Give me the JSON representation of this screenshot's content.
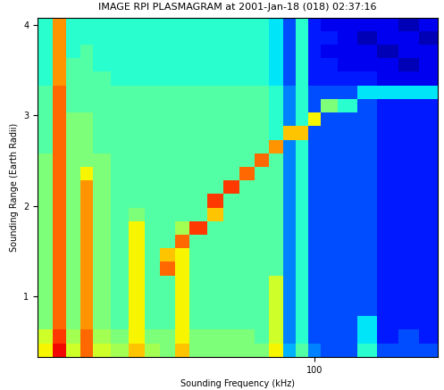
{
  "chart_data": {
    "type": "heatmap",
    "title": "IMAGE RPI PLASMAGRAM at 2001-Jan-18 (018) 02:37:16",
    "x_label": "Sounding Frequency (kHz)",
    "y_label": "Sounding Range (Earth Radii)",
    "log": "x",
    "xlim": [
      40,
      150
    ],
    "xticks": [
      100
    ],
    "ylim": [
      0.33,
      4.08
    ],
    "yticks": [
      1,
      2,
      3,
      4
    ],
    "clim": [
      0,
      10
    ],
    "x_edges": [
      40,
      42,
      44,
      46,
      48,
      51,
      54,
      57,
      60,
      63,
      66,
      70,
      74,
      78,
      82,
      86,
      90,
      94,
      98,
      102,
      108,
      115,
      123,
      132,
      141,
      150
    ],
    "y_edges": [
      0.33,
      0.48,
      0.63,
      0.78,
      0.93,
      1.08,
      1.23,
      1.38,
      1.53,
      1.68,
      1.83,
      1.98,
      2.13,
      2.28,
      2.43,
      2.58,
      2.73,
      2.88,
      3.03,
      3.18,
      3.33,
      3.48,
      3.63,
      3.78,
      3.93,
      4.08
    ],
    "cells": [
      [
        6.5,
        9,
        6,
        8,
        6,
        5.5,
        7,
        5.5,
        5,
        7,
        5,
        5,
        5,
        5,
        5,
        6.5,
        3,
        4.5,
        2.5,
        2,
        2,
        4,
        2,
        2,
        2
      ],
      [
        6,
        8.5,
        5.5,
        8,
        5.5,
        5,
        6.5,
        5,
        5,
        6.5,
        5,
        5,
        5,
        5,
        4.5,
        6,
        2.5,
        4,
        2,
        2,
        2,
        3.5,
        1.5,
        2,
        1.5
      ],
      [
        5,
        8,
        5,
        7.5,
        5,
        4.5,
        6.5,
        4.5,
        4.5,
        6.5,
        4.5,
        4.5,
        4.5,
        4.5,
        4.5,
        6,
        2.5,
        4,
        2,
        2,
        2,
        3.5,
        1.5,
        1.5,
        1.5
      ],
      [
        5,
        8,
        5,
        7.5,
        5,
        4.5,
        6.5,
        4.5,
        4.5,
        6.5,
        4.5,
        4.5,
        4.5,
        4.5,
        4.5,
        6,
        2.5,
        4,
        2,
        2,
        2,
        2,
        1.5,
        1.5,
        1.5
      ],
      [
        5,
        8,
        5,
        7.5,
        5,
        4.5,
        6.5,
        4.5,
        4.5,
        6.5,
        4.5,
        4.5,
        4.5,
        4.5,
        4.5,
        6,
        2.5,
        4,
        2,
        2,
        2,
        2,
        1.5,
        1.5,
        1.5
      ],
      [
        5,
        8,
        5,
        7.5,
        5,
        4.5,
        6.5,
        4.5,
        4.5,
        6.5,
        4.5,
        4.5,
        4.5,
        4.5,
        4.5,
        6,
        2.5,
        4,
        2,
        2,
        2,
        2,
        1.5,
        1.5,
        1.5
      ],
      [
        5,
        8,
        5,
        7.5,
        5,
        4.5,
        6.5,
        4.5,
        8,
        6.5,
        4.5,
        4.5,
        4.5,
        4.5,
        4.5,
        4.5,
        2.5,
        4,
        2,
        2,
        2,
        2,
        1.5,
        1.5,
        1.5
      ],
      [
        5,
        8,
        5,
        7.5,
        5,
        4.5,
        6.5,
        4.5,
        7,
        6.5,
        4.5,
        4.5,
        4.5,
        4.5,
        4.5,
        4.5,
        2.5,
        4,
        2,
        2,
        2,
        2,
        1.5,
        1.5,
        1.5
      ],
      [
        5,
        8,
        5,
        7.5,
        5,
        4.5,
        6.5,
        4.5,
        4.5,
        8,
        4.5,
        4.5,
        4.5,
        4.5,
        4.5,
        4.5,
        2.5,
        4,
        2,
        2,
        2,
        2,
        1.5,
        1.5,
        1.5
      ],
      [
        5,
        8,
        5,
        7.5,
        5,
        4.5,
        6.5,
        4.5,
        4.5,
        5.5,
        8.5,
        4.5,
        4.5,
        4.5,
        4.5,
        4.5,
        2.5,
        4,
        2,
        2,
        2,
        2,
        1.5,
        1.5,
        1.5
      ],
      [
        5,
        8,
        5,
        7.5,
        5,
        4.5,
        5,
        4.5,
        4.5,
        4.5,
        4.5,
        7,
        4.5,
        4.5,
        4.5,
        4.5,
        2.5,
        4,
        2,
        2,
        2,
        2,
        1.5,
        1.5,
        1.5
      ],
      [
        5,
        8,
        5,
        7.5,
        5,
        4.5,
        4.5,
        4.5,
        4.5,
        4.5,
        4.5,
        8.5,
        4.5,
        4.5,
        4.5,
        4.5,
        2.5,
        4,
        2,
        2,
        2,
        2,
        1.5,
        1.5,
        1.5
      ],
      [
        5,
        8,
        5,
        7.5,
        5,
        4.5,
        4.5,
        4.5,
        4.5,
        4.5,
        4.5,
        4.5,
        8.5,
        4.5,
        4.5,
        4.5,
        2.5,
        4,
        2,
        2,
        2,
        2,
        1.5,
        1.5,
        1.5
      ],
      [
        5,
        8,
        5,
        6.5,
        5,
        4.5,
        4.5,
        4.5,
        4.5,
        4.5,
        4.5,
        4.5,
        4.5,
        8,
        4.5,
        4.5,
        2.5,
        4,
        2,
        2,
        2,
        2,
        1.5,
        1.5,
        1.5
      ],
      [
        5,
        8,
        5,
        5,
        5,
        4.5,
        4.5,
        4.5,
        4.5,
        4.5,
        4.5,
        4.5,
        4.5,
        4.5,
        8,
        4.5,
        2.5,
        4,
        2,
        2,
        2,
        2,
        1.5,
        1.5,
        1.5
      ],
      [
        4.5,
        8,
        5,
        5,
        4.5,
        4.5,
        4.5,
        4.5,
        4.5,
        4.5,
        4.5,
        4.5,
        4.5,
        4.5,
        4.5,
        7.5,
        2.5,
        4,
        2,
        2,
        2,
        2,
        1.5,
        1.5,
        1.5
      ],
      [
        4.5,
        8,
        5,
        5,
        4.5,
        4.5,
        4.5,
        4.5,
        4.5,
        4.5,
        4.5,
        4.5,
        4.5,
        4.5,
        4.5,
        4,
        7,
        7,
        2,
        2,
        2,
        2,
        1.5,
        1.5,
        1.5
      ],
      [
        4.5,
        8,
        5,
        5,
        4.5,
        4.5,
        4.5,
        4.5,
        4.5,
        4.5,
        4.5,
        4.5,
        4.5,
        4.5,
        4.5,
        4,
        2.5,
        4,
        6.5,
        2,
        2,
        2,
        1.5,
        1.5,
        1.5
      ],
      [
        4.5,
        8,
        4.5,
        4.5,
        4.5,
        4.5,
        4.5,
        4.5,
        4.5,
        4.5,
        4.5,
        4.5,
        4.5,
        4.5,
        4.5,
        4,
        2.5,
        4,
        2,
        5,
        4,
        2,
        1.5,
        1.5,
        1.5
      ],
      [
        4.5,
        8,
        4.5,
        4.5,
        4.5,
        4.5,
        4.5,
        4.5,
        4.5,
        4.5,
        4.5,
        4.5,
        4.5,
        4.5,
        4.5,
        4,
        2.5,
        4,
        2,
        2,
        2,
        3.5,
        3.5,
        3.5,
        3.5
      ],
      [
        4,
        7.5,
        4.5,
        4.5,
        4.5,
        4,
        4,
        4,
        4,
        4,
        4,
        4,
        4,
        4,
        4,
        3.5,
        2,
        4,
        1.5,
        1.5,
        1.5,
        1.5,
        1,
        1,
        1
      ],
      [
        4,
        7.5,
        4.5,
        4.5,
        4,
        4,
        4,
        4,
        4,
        4,
        4,
        4,
        4,
        4,
        4,
        3.5,
        2,
        4,
        1.5,
        1.5,
        1,
        1,
        1,
        0.5,
        1
      ],
      [
        4,
        7.5,
        4,
        4.5,
        4,
        4,
        4,
        4,
        4,
        4,
        4,
        4,
        4,
        4,
        4,
        3.5,
        2,
        4,
        1.5,
        1,
        1,
        1,
        0.5,
        1,
        1
      ],
      [
        4,
        7.5,
        4,
        4,
        4,
        4,
        4,
        4,
        4,
        4,
        4,
        4,
        4,
        4,
        4,
        3.5,
        2,
        4,
        1.5,
        1.5,
        1,
        0.5,
        1,
        1,
        0.5
      ],
      [
        4,
        7.5,
        4,
        4,
        4,
        4,
        4,
        4,
        4,
        4,
        4,
        4,
        4,
        4,
        4,
        3.5,
        2,
        4,
        1.5,
        1,
        1,
        1,
        1,
        0.5,
        1
      ]
    ]
  }
}
